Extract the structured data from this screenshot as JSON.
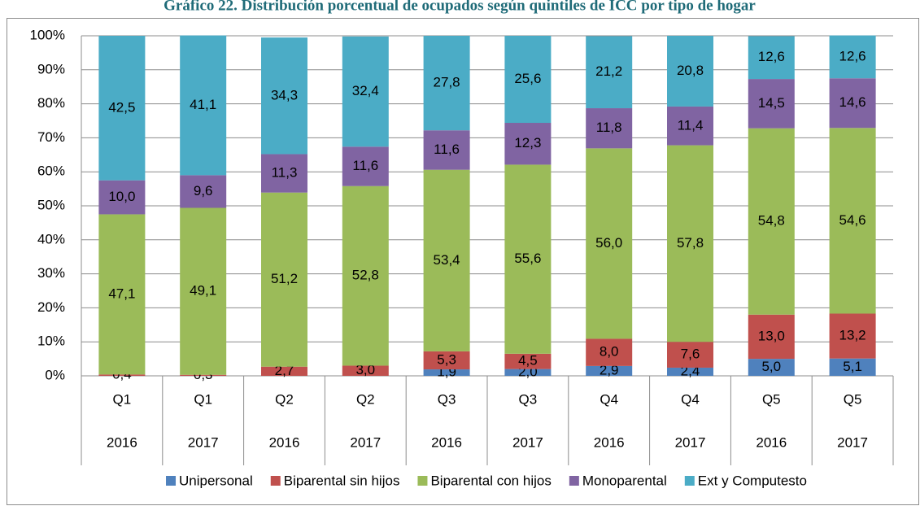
{
  "chart_data": {
    "type": "stacked_bar",
    "title": "Gráfico 22. Distribución porcentual de ocupados según quintiles de ICC por tipo de hogar",
    "categories": [
      "Q1",
      "Q1",
      "Q2",
      "Q2",
      "Q3",
      "Q3",
      "Q4",
      "Q4",
      "Q5",
      "Q5"
    ],
    "years": [
      "2016",
      "2017",
      "2016",
      "2017",
      "2016",
      "2017",
      "2016",
      "2017",
      "2016",
      "2017"
    ],
    "ylim": [
      0,
      100
    ],
    "yticks": [
      {
        "value": 0,
        "label": "0%"
      },
      {
        "value": 10,
        "label": "10%"
      },
      {
        "value": 20,
        "label": "20%"
      },
      {
        "value": 30,
        "label": "30%"
      },
      {
        "value": 40,
        "label": "40%"
      },
      {
        "value": 50,
        "label": "50%"
      },
      {
        "value": 60,
        "label": "60%"
      },
      {
        "value": 70,
        "label": "70%"
      },
      {
        "value": 80,
        "label": "80%"
      },
      {
        "value": 90,
        "label": "90%"
      },
      {
        "value": 100,
        "label": "100%"
      }
    ],
    "grid": true,
    "legend": "bottom",
    "series": [
      {
        "name": "Unipersonal",
        "color": "#4f81bd",
        "values": [
          null,
          null,
          null,
          null,
          1.9,
          2.0,
          2.9,
          2.4,
          5.0,
          5.1
        ],
        "value_labels": [
          null,
          null,
          null,
          null,
          "1,9",
          "2,0",
          "2,9",
          "2,4",
          "5,0",
          "5,1"
        ]
      },
      {
        "name": "Biparental sin hijos",
        "color": "#c0504d",
        "values": [
          0.4,
          0.3,
          2.7,
          3.0,
          5.3,
          4.5,
          8.0,
          7.6,
          13.0,
          13.2
        ],
        "value_labels": [
          "0,4",
          "0,3",
          "2,7",
          "3,0",
          "5,3",
          "4,5",
          "8,0",
          "7,6",
          "13,0",
          "13,2"
        ]
      },
      {
        "name": "Biparental con hijos",
        "color": "#9bbb59",
        "values": [
          47.1,
          49.1,
          51.2,
          52.8,
          53.4,
          55.6,
          56.0,
          57.8,
          54.8,
          54.6
        ],
        "value_labels": [
          "47,1",
          "49,1",
          "51,2",
          "52,8",
          "53,4",
          "55,6",
          "56,0",
          "57,8",
          "54,8",
          "54,6"
        ]
      },
      {
        "name": "Monoparental",
        "color": "#8064a2",
        "values": [
          10.0,
          9.6,
          11.3,
          11.6,
          11.6,
          12.3,
          11.8,
          11.4,
          14.5,
          14.6
        ],
        "value_labels": [
          "10,0",
          "9,6",
          "11,3",
          "11,6",
          "11,6",
          "12,3",
          "11,8",
          "11,4",
          "14,5",
          "14,6"
        ]
      },
      {
        "name": "Ext y Computesto",
        "color": "#4bacc6",
        "values": [
          42.5,
          41.1,
          34.3,
          32.4,
          27.8,
          25.6,
          21.2,
          20.8,
          12.6,
          12.6
        ],
        "value_labels": [
          "42,5",
          "41,1",
          "34,3",
          "32,4",
          "27,8",
          "25,6",
          "21,2",
          "20,8",
          "12,6",
          "12,6"
        ]
      }
    ]
  }
}
